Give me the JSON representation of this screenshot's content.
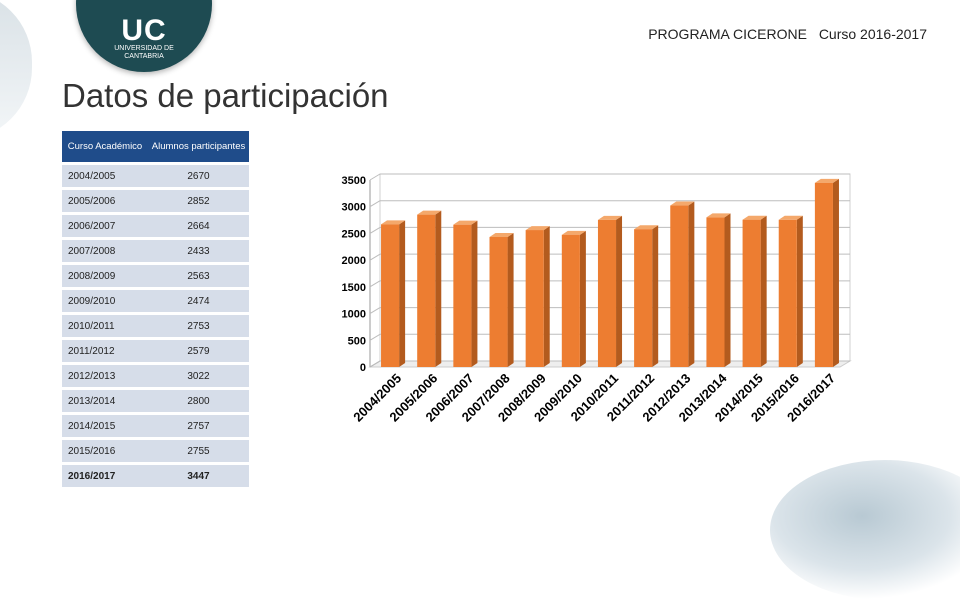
{
  "header": {
    "program": "PROGRAMA CICERONE",
    "course": "Curso 2016-2017"
  },
  "logo": {
    "brand": "UC",
    "university": "UNIVERSIDAD DE CANTABRIA"
  },
  "title": "Datos de participación",
  "table": {
    "headers": [
      "Curso Académico",
      "Alumnos participantes"
    ],
    "rows": [
      [
        "2004/2005",
        "2670"
      ],
      [
        "2005/2006",
        "2852"
      ],
      [
        "2006/2007",
        "2664"
      ],
      [
        "2007/2008",
        "2433"
      ],
      [
        "2008/2009",
        "2563"
      ],
      [
        "2009/2010",
        "2474"
      ],
      [
        "2010/2011",
        "2753"
      ],
      [
        "2011/2012",
        "2579"
      ],
      [
        "2012/2013",
        "3022"
      ],
      [
        "2013/2014",
        "2800"
      ],
      [
        "2014/2015",
        "2757"
      ],
      [
        "2015/2016",
        "2755"
      ],
      [
        "2016/2017",
        "3447"
      ]
    ]
  },
  "chart_data": {
    "type": "bar",
    "categories": [
      "2004/2005",
      "2005/2006",
      "2006/2007",
      "2007/2008",
      "2008/2009",
      "2009/2010",
      "2010/2011",
      "2011/2012",
      "2012/2013",
      "2013/2014",
      "2014/2015",
      "2015/2016",
      "2016/2017"
    ],
    "values": [
      2670,
      2852,
      2664,
      2433,
      2563,
      2474,
      2753,
      2579,
      3022,
      2800,
      2757,
      2755,
      3447
    ],
    "ylim": [
      0,
      3500
    ],
    "yticks": [
      0,
      500,
      1000,
      1500,
      2000,
      2500,
      3000,
      3500
    ],
    "grid": true,
    "bar_color": "#ed7d31"
  }
}
